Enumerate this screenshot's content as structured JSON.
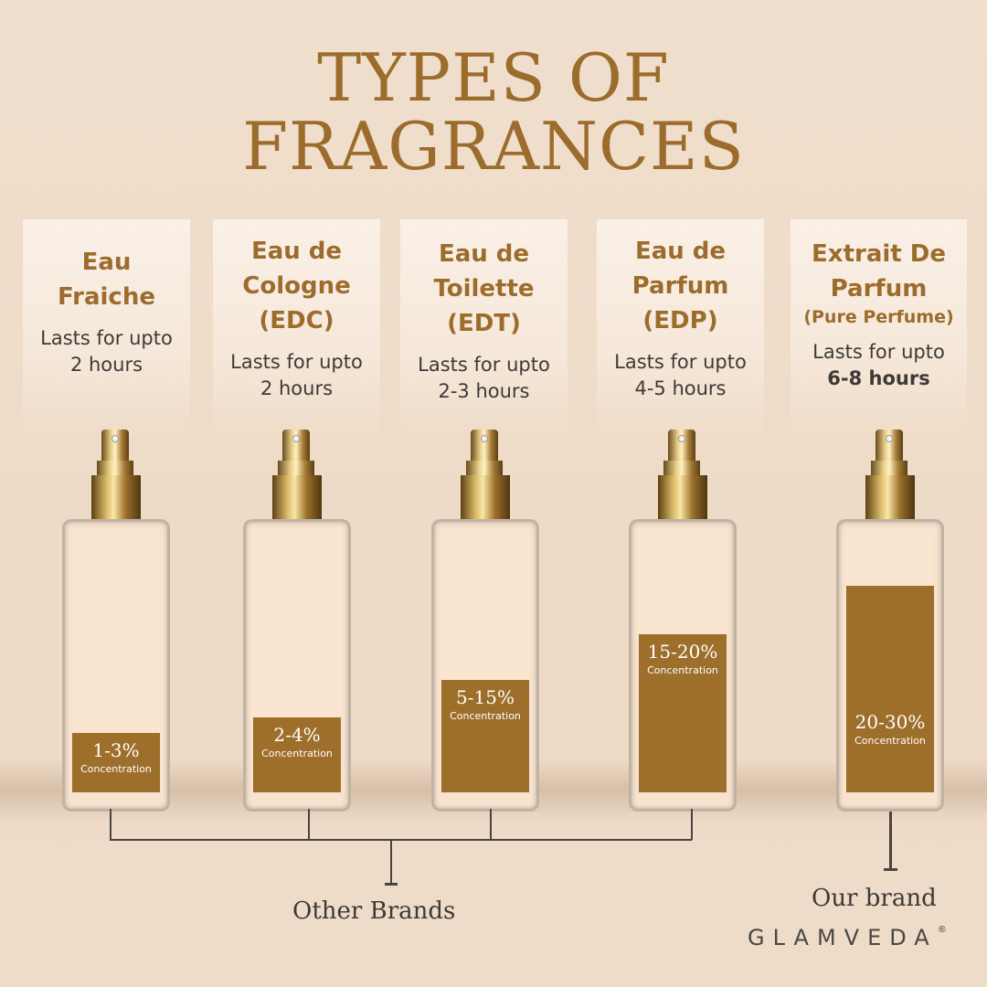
{
  "title": {
    "line1": "TYPES OF",
    "line2": "FRAGRANCES"
  },
  "types": [
    {
      "name": [
        "Eau",
        "Fraiche"
      ],
      "sub": "",
      "lasts": "Lasts for upto",
      "hours": "2 hours",
      "hours_bold": false,
      "concentration": "1-3%",
      "concentration_label": "Concentration",
      "fill_level": 0.22
    },
    {
      "name": [
        "Eau de",
        "Cologne",
        "(EDC)"
      ],
      "sub": "",
      "lasts": "Lasts for upto",
      "hours": "2 hours",
      "hours_bold": false,
      "concentration": "2-4%",
      "concentration_label": "Concentration",
      "fill_level": 0.28
    },
    {
      "name": [
        "Eau de",
        "Toilette",
        "(EDT)"
      ],
      "sub": "",
      "lasts": "Lasts for upto",
      "hours": "2-3 hours",
      "hours_bold": false,
      "concentration": "5-15%",
      "concentration_label": "Concentration",
      "fill_level": 0.42
    },
    {
      "name": [
        "Eau de",
        "Parfum",
        "(EDP)"
      ],
      "sub": "",
      "lasts": "Lasts for upto",
      "hours": "4-5 hours",
      "hours_bold": false,
      "concentration": "15-20%",
      "concentration_label": "Concentration",
      "fill_level": 0.59
    },
    {
      "name": [
        "Extrait De",
        "Parfum"
      ],
      "sub": "(Pure Perfume)",
      "lasts": "Lasts for upto",
      "hours": "6-8 hours",
      "hours_bold": true,
      "concentration": "20-30%",
      "concentration_label": "Concentration",
      "fill_level": 0.77
    }
  ],
  "labels": {
    "other": "Other Brands",
    "ours": "Our brand"
  },
  "brand": {
    "logo": "GLAMVEDA",
    "reg": "®"
  },
  "colors": {
    "accent": "#9e6e2b",
    "background": "#efdcc8",
    "text": "#3d3a36"
  }
}
